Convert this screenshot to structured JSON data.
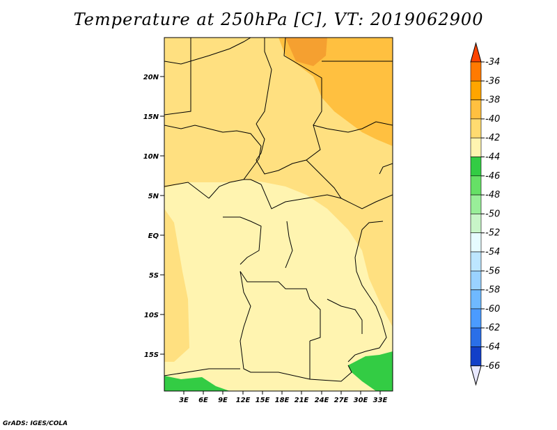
{
  "title": "Temperature at 250hPa [C], VT: 2019062900",
  "credit": "GrADS: IGES/COLA",
  "lat_labels": [
    "20N",
    "15N",
    "10N",
    "5N",
    "EQ",
    "5S",
    "10S",
    "15S"
  ],
  "lon_labels": [
    "3E",
    "6E",
    "9E",
    "12E",
    "15E",
    "18E",
    "21E",
    "24E",
    "27E",
    "30E",
    "33E"
  ],
  "colorbar": {
    "labels": [
      "-34",
      "-36",
      "-38",
      "-40",
      "-42",
      "-44",
      "-46",
      "-48",
      "-50",
      "-52",
      "-54",
      "-56",
      "-58",
      "-60",
      "-62",
      "-64",
      "-66"
    ],
    "colors": [
      "#ff4400",
      "#ff7a00",
      "#ffa500",
      "#ffc040",
      "#ffdb70",
      "#fff4b0",
      "#33cc44",
      "#66e066",
      "#99ee99",
      "#c8f5c8",
      "#e6fbff",
      "#bde6ff",
      "#9ad2ff",
      "#6fb9ff",
      "#4b9bff",
      "#2a6fe8",
      "#123fc8",
      "#071878",
      "#e8e8ff"
    ]
  },
  "fields": {
    "base_color": "#fff4b0",
    "warm_color": "#ffe080",
    "warmer_color": "#ffc040",
    "warmest_color": "#f5a030",
    "cold_color": "#33cc44"
  }
}
